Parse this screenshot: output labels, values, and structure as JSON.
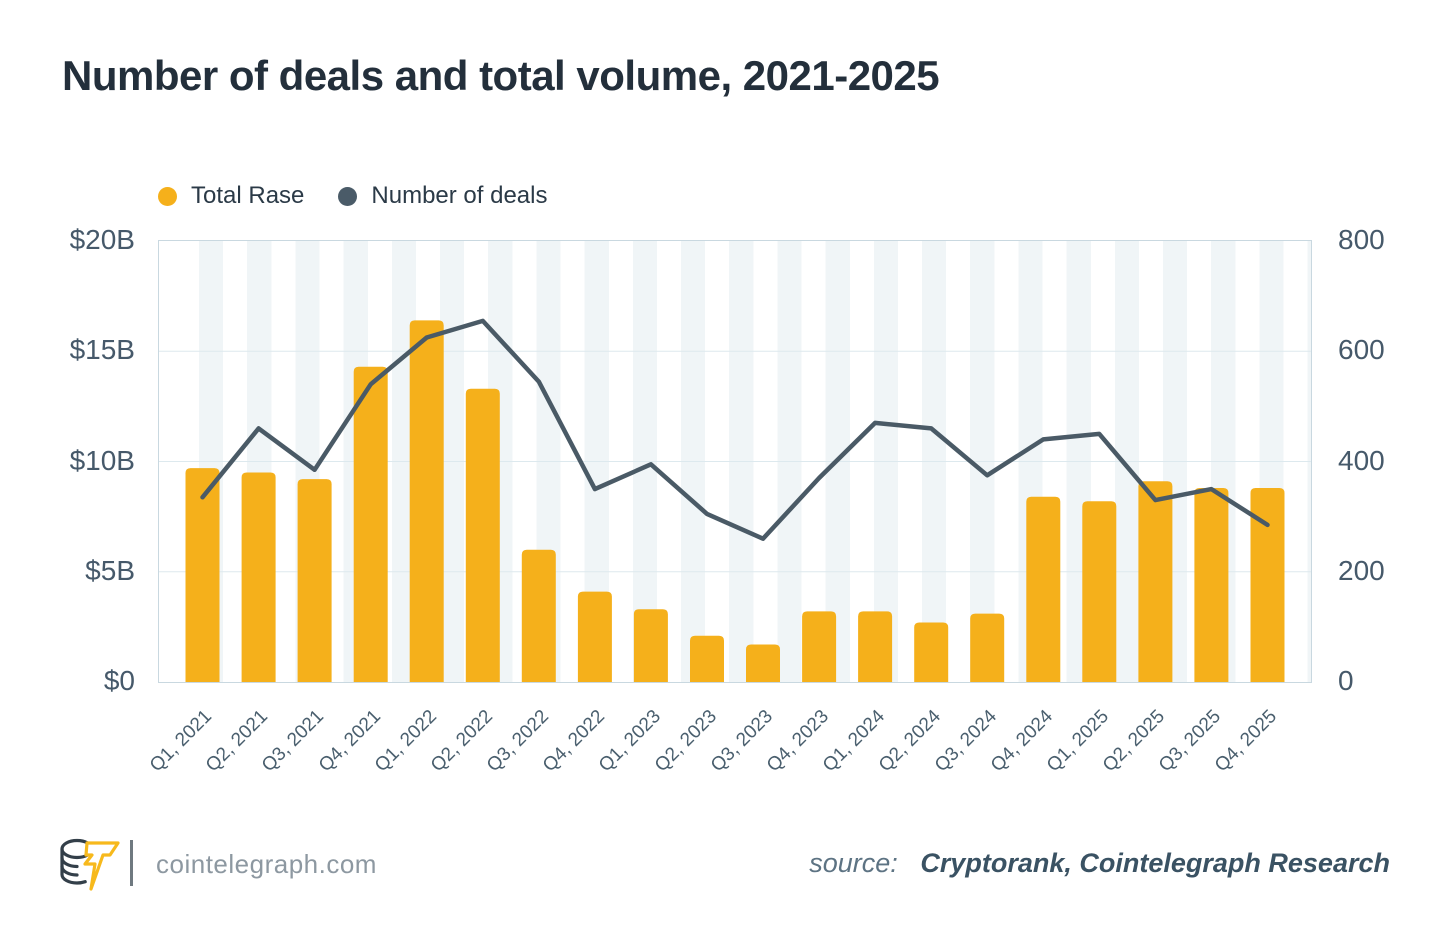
{
  "title": "Number of deals and total volume, 2021-2025",
  "legend": [
    {
      "label": "Total Rase",
      "color": "#F5B01B"
    },
    {
      "label": "Number of deals",
      "color": "#4A5B68"
    }
  ],
  "chart_data": {
    "type": "bar+line",
    "categories": [
      "Q1, 2021",
      "Q2, 2021",
      "Q3, 2021",
      "Q4, 2021",
      "Q1, 2022",
      "Q2, 2022",
      "Q3, 2022",
      "Q4, 2022",
      "Q1, 2023",
      "Q2, 2023",
      "Q3, 2023",
      "Q4, 2023",
      "Q1, 2024",
      "Q2, 2024",
      "Q3, 2024",
      "Q4, 2024",
      "Q1, 2025",
      "Q2, 2025",
      "Q3, 2025",
      "Q4, 2025"
    ],
    "series": [
      {
        "name": "Total Rase",
        "type": "bar",
        "axis": "left",
        "unit": "$B",
        "color": "#F5B01B",
        "values": [
          9.7,
          9.5,
          9.2,
          14.3,
          16.4,
          13.3,
          6.0,
          4.1,
          3.3,
          2.1,
          1.7,
          3.2,
          3.2,
          2.7,
          3.1,
          8.4,
          8.2,
          9.1,
          8.8,
          8.8
        ]
      },
      {
        "name": "Number of deals",
        "type": "line",
        "axis": "right",
        "color": "#4A5A66",
        "values": [
          335,
          460,
          385,
          540,
          625,
          655,
          545,
          350,
          395,
          305,
          260,
          370,
          470,
          460,
          375,
          440,
          450,
          330,
          350,
          285
        ]
      }
    ],
    "y_left": {
      "ticks": [
        "$20B",
        "$15B",
        "$10B",
        "$5B",
        "$0"
      ],
      "min": 0,
      "max": 20
    },
    "y_right": {
      "ticks": [
        "800",
        "600",
        "400",
        "200",
        "0"
      ],
      "min": 0,
      "max": 800
    },
    "grid": true,
    "grid_color": "#DDE9EE",
    "legend_position": "top-left"
  },
  "footer": {
    "site": "cointelegraph.com",
    "source_label": "source:",
    "source_value": "Cryptorank, Cointelegraph Research"
  }
}
